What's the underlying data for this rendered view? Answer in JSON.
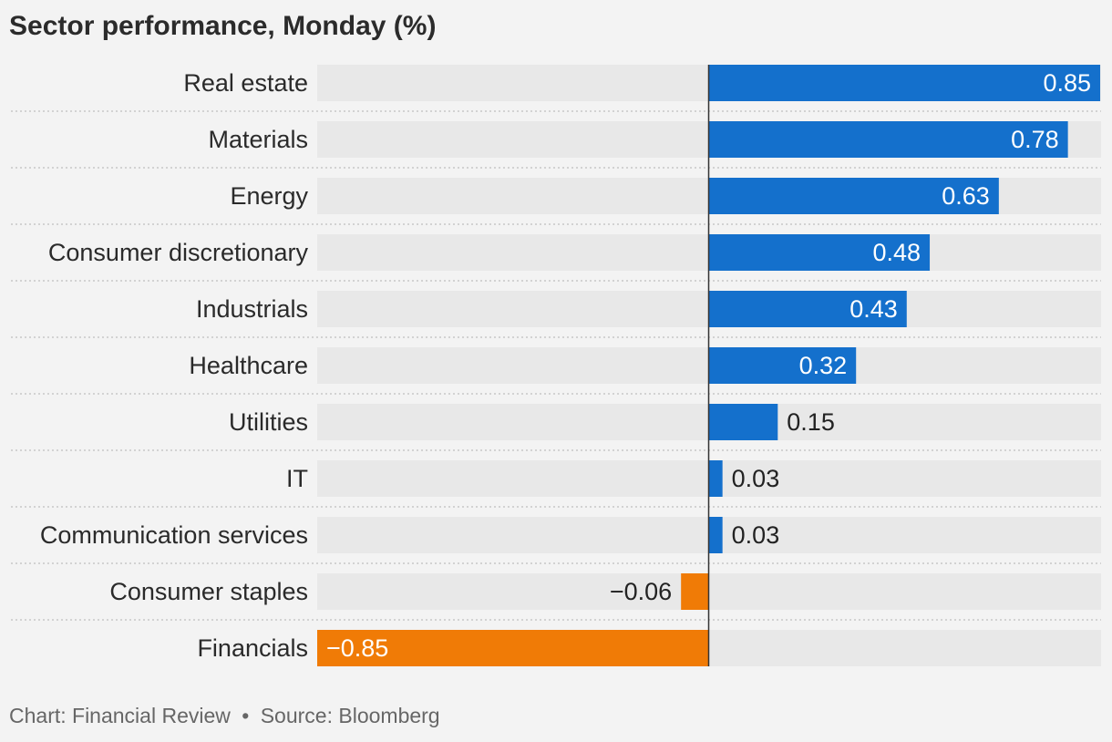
{
  "title": "Sector performance, Monday (%)",
  "footer": {
    "chart_credit": "Chart: Financial Review",
    "separator": "•",
    "source": "Source: Bloomberg"
  },
  "colors": {
    "positive": "#1470cc",
    "negative": "#f07b06",
    "track": "#e8e8e8",
    "background": "#f3f3f3",
    "axis": "#333333",
    "divider": "#c8c8c8"
  },
  "chart_data": {
    "type": "bar",
    "orientation": "horizontal",
    "title": "Sector performance, Monday (%)",
    "categories": [
      "Real estate",
      "Materials",
      "Energy",
      "Consumer discretionary",
      "Industrials",
      "Healthcare",
      "Utilities",
      "IT",
      "Communication services",
      "Consumer staples",
      "Financials"
    ],
    "values": [
      0.85,
      0.78,
      0.63,
      0.48,
      0.43,
      0.32,
      0.15,
      0.03,
      0.03,
      -0.06,
      -0.85
    ],
    "value_labels": [
      "0.85",
      "0.78",
      "0.63",
      "0.48",
      "0.43",
      "0.32",
      "0.15",
      "0.03",
      "0.03",
      "−0.06",
      "−0.85"
    ],
    "xlim": [
      -0.85,
      0.85
    ],
    "grid": false,
    "legend": "none"
  }
}
